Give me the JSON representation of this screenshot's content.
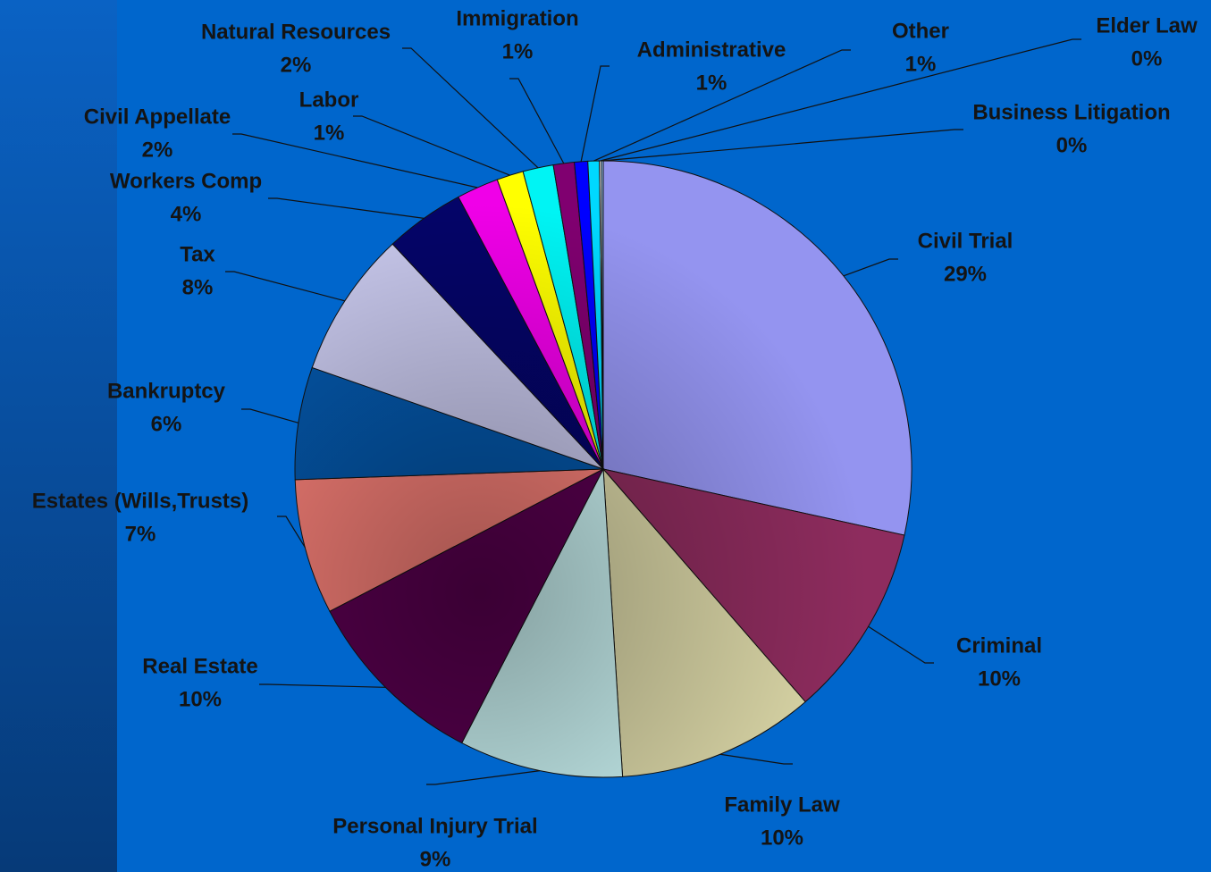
{
  "chart_data": {
    "type": "pie",
    "categories": [
      "Civil Trial",
      "Criminal",
      "Family Law",
      "Personal Injury Trial",
      "Real Estate",
      "Estates (Wills,Trusts)",
      "Bankruptcy",
      "Tax",
      "Workers Comp",
      "Civil Appellate",
      "Labor",
      "Natural Resources",
      "Immigration",
      "Administrative",
      "Other",
      "Elder Law",
      "Business Litigation"
    ],
    "values": [
      28.5,
      10.2,
      10.4,
      8.6,
      9.8,
      7.1,
      5.9,
      7.7,
      4.2,
      2.2,
      1.4,
      1.6,
      1.1,
      0.7,
      0.6,
      0.1,
      0.1
    ],
    "value_labels": [
      "29%",
      "10%",
      "10%",
      "9%",
      "10%",
      "7%",
      "6%",
      "8%",
      "4%",
      "2%",
      "1%",
      "2%",
      "1%",
      "1%",
      "1%",
      "0%",
      "0%"
    ],
    "colors": [
      "#9494f0",
      "#8e2c5e",
      "#dcd8a8",
      "#cdf6f6",
      "#5a0050",
      "#f88078",
      "#0456a8",
      "#c6c6ea",
      "#040468",
      "#f000e8",
      "#ffff00",
      "#00f4f4",
      "#800070",
      "#0000ff",
      "#00d8ff",
      "#ffffff",
      "#99ccff"
    ]
  }
}
